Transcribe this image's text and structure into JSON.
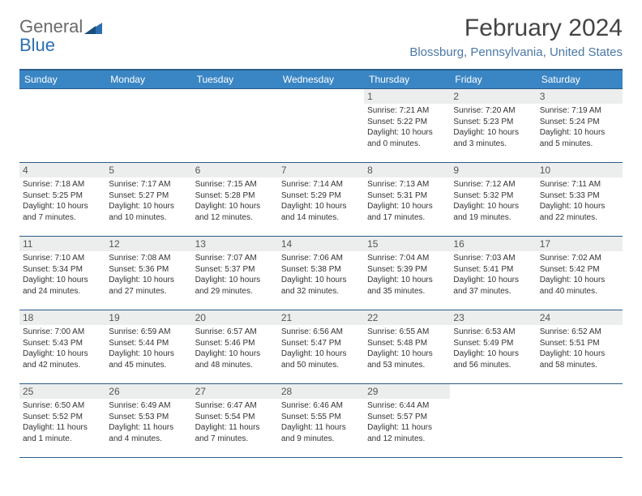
{
  "logo": {
    "word1": "General",
    "word2": "Blue"
  },
  "title": "February 2024",
  "location": "Blossburg, Pennsylvania, United States",
  "colors": {
    "header_bg": "#3a86c5",
    "header_border": "#2b5c88",
    "daynum_bg": "#eceeee",
    "location_color": "#4a78a6",
    "logo_gray": "#6a6a6a",
    "logo_blue": "#2c6fb0",
    "text": "#333333",
    "background": "#ffffff"
  },
  "typography": {
    "title_fontsize": 30,
    "location_fontsize": 15,
    "dow_fontsize": 12,
    "daynum_fontsize": 12,
    "info_fontsize": 10
  },
  "days_of_week": [
    "Sunday",
    "Monday",
    "Tuesday",
    "Wednesday",
    "Thursday",
    "Friday",
    "Saturday"
  ],
  "weeks": [
    [
      null,
      null,
      null,
      null,
      {
        "n": "1",
        "sr": "Sunrise: 7:21 AM",
        "ss": "Sunset: 5:22 PM",
        "dl": "Daylight: 10 hours and 0 minutes."
      },
      {
        "n": "2",
        "sr": "Sunrise: 7:20 AM",
        "ss": "Sunset: 5:23 PM",
        "dl": "Daylight: 10 hours and 3 minutes."
      },
      {
        "n": "3",
        "sr": "Sunrise: 7:19 AM",
        "ss": "Sunset: 5:24 PM",
        "dl": "Daylight: 10 hours and 5 minutes."
      }
    ],
    [
      {
        "n": "4",
        "sr": "Sunrise: 7:18 AM",
        "ss": "Sunset: 5:25 PM",
        "dl": "Daylight: 10 hours and 7 minutes."
      },
      {
        "n": "5",
        "sr": "Sunrise: 7:17 AM",
        "ss": "Sunset: 5:27 PM",
        "dl": "Daylight: 10 hours and 10 minutes."
      },
      {
        "n": "6",
        "sr": "Sunrise: 7:15 AM",
        "ss": "Sunset: 5:28 PM",
        "dl": "Daylight: 10 hours and 12 minutes."
      },
      {
        "n": "7",
        "sr": "Sunrise: 7:14 AM",
        "ss": "Sunset: 5:29 PM",
        "dl": "Daylight: 10 hours and 14 minutes."
      },
      {
        "n": "8",
        "sr": "Sunrise: 7:13 AM",
        "ss": "Sunset: 5:31 PM",
        "dl": "Daylight: 10 hours and 17 minutes."
      },
      {
        "n": "9",
        "sr": "Sunrise: 7:12 AM",
        "ss": "Sunset: 5:32 PM",
        "dl": "Daylight: 10 hours and 19 minutes."
      },
      {
        "n": "10",
        "sr": "Sunrise: 7:11 AM",
        "ss": "Sunset: 5:33 PM",
        "dl": "Daylight: 10 hours and 22 minutes."
      }
    ],
    [
      {
        "n": "11",
        "sr": "Sunrise: 7:10 AM",
        "ss": "Sunset: 5:34 PM",
        "dl": "Daylight: 10 hours and 24 minutes."
      },
      {
        "n": "12",
        "sr": "Sunrise: 7:08 AM",
        "ss": "Sunset: 5:36 PM",
        "dl": "Daylight: 10 hours and 27 minutes."
      },
      {
        "n": "13",
        "sr": "Sunrise: 7:07 AM",
        "ss": "Sunset: 5:37 PM",
        "dl": "Daylight: 10 hours and 29 minutes."
      },
      {
        "n": "14",
        "sr": "Sunrise: 7:06 AM",
        "ss": "Sunset: 5:38 PM",
        "dl": "Daylight: 10 hours and 32 minutes."
      },
      {
        "n": "15",
        "sr": "Sunrise: 7:04 AM",
        "ss": "Sunset: 5:39 PM",
        "dl": "Daylight: 10 hours and 35 minutes."
      },
      {
        "n": "16",
        "sr": "Sunrise: 7:03 AM",
        "ss": "Sunset: 5:41 PM",
        "dl": "Daylight: 10 hours and 37 minutes."
      },
      {
        "n": "17",
        "sr": "Sunrise: 7:02 AM",
        "ss": "Sunset: 5:42 PM",
        "dl": "Daylight: 10 hours and 40 minutes."
      }
    ],
    [
      {
        "n": "18",
        "sr": "Sunrise: 7:00 AM",
        "ss": "Sunset: 5:43 PM",
        "dl": "Daylight: 10 hours and 42 minutes."
      },
      {
        "n": "19",
        "sr": "Sunrise: 6:59 AM",
        "ss": "Sunset: 5:44 PM",
        "dl": "Daylight: 10 hours and 45 minutes."
      },
      {
        "n": "20",
        "sr": "Sunrise: 6:57 AM",
        "ss": "Sunset: 5:46 PM",
        "dl": "Daylight: 10 hours and 48 minutes."
      },
      {
        "n": "21",
        "sr": "Sunrise: 6:56 AM",
        "ss": "Sunset: 5:47 PM",
        "dl": "Daylight: 10 hours and 50 minutes."
      },
      {
        "n": "22",
        "sr": "Sunrise: 6:55 AM",
        "ss": "Sunset: 5:48 PM",
        "dl": "Daylight: 10 hours and 53 minutes."
      },
      {
        "n": "23",
        "sr": "Sunrise: 6:53 AM",
        "ss": "Sunset: 5:49 PM",
        "dl": "Daylight: 10 hours and 56 minutes."
      },
      {
        "n": "24",
        "sr": "Sunrise: 6:52 AM",
        "ss": "Sunset: 5:51 PM",
        "dl": "Daylight: 10 hours and 58 minutes."
      }
    ],
    [
      {
        "n": "25",
        "sr": "Sunrise: 6:50 AM",
        "ss": "Sunset: 5:52 PM",
        "dl": "Daylight: 11 hours and 1 minute."
      },
      {
        "n": "26",
        "sr": "Sunrise: 6:49 AM",
        "ss": "Sunset: 5:53 PM",
        "dl": "Daylight: 11 hours and 4 minutes."
      },
      {
        "n": "27",
        "sr": "Sunrise: 6:47 AM",
        "ss": "Sunset: 5:54 PM",
        "dl": "Daylight: 11 hours and 7 minutes."
      },
      {
        "n": "28",
        "sr": "Sunrise: 6:46 AM",
        "ss": "Sunset: 5:55 PM",
        "dl": "Daylight: 11 hours and 9 minutes."
      },
      {
        "n": "29",
        "sr": "Sunrise: 6:44 AM",
        "ss": "Sunset: 5:57 PM",
        "dl": "Daylight: 11 hours and 12 minutes."
      },
      null,
      null
    ]
  ]
}
